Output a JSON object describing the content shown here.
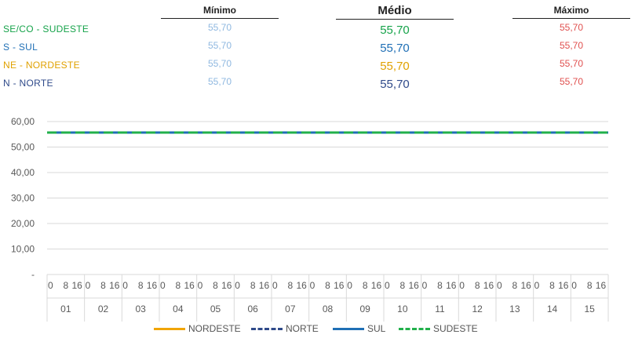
{
  "headers": {
    "min": "Mínimo",
    "med": "Médio",
    "max": "Máximo"
  },
  "rows": [
    {
      "region": "SE/CO - SUDESTE",
      "color": "#16a34a",
      "min": "55,70",
      "med": "55,70",
      "max": "55,70"
    },
    {
      "region": "S - SUL",
      "color": "#1f6fb5",
      "min": "55,70",
      "med": "55,70",
      "max": "55,70"
    },
    {
      "region": "NE - NORDESTE",
      "color": "#e0a100",
      "min": "55,70",
      "med": "55,70",
      "max": "55,70"
    },
    {
      "region": "N - NORTE",
      "color": "#2f4a8a",
      "min": "55,70",
      "med": "55,70",
      "max": "55,70"
    }
  ],
  "value_colors": {
    "min": "#8fb8e0",
    "max": "#e0504f"
  },
  "chart_data": {
    "type": "line",
    "ylim": [
      0,
      60
    ],
    "yticks": [
      "-",
      "10,00",
      "20,00",
      "30,00",
      "40,00",
      "50,00",
      "60,00"
    ],
    "ytick_values": [
      0,
      10,
      20,
      30,
      40,
      50,
      60
    ],
    "hour_ticks": [
      "0",
      "8",
      "16"
    ],
    "days": [
      "01",
      "02",
      "03",
      "04",
      "05",
      "06",
      "07",
      "08",
      "09",
      "10",
      "11",
      "12",
      "13",
      "14",
      "15"
    ],
    "grid": true,
    "legend_position": "bottom",
    "series": [
      {
        "name": "NORDESTE",
        "color": "#f0a500",
        "dash": "solid",
        "value": 55.7
      },
      {
        "name": "NORTE",
        "color": "#2f4a8a",
        "dash": "dashed",
        "value": 55.7
      },
      {
        "name": "SUL",
        "color": "#1f6fb5",
        "dash": "solid",
        "value": 55.7
      },
      {
        "name": "SUDESTE",
        "color": "#22b04b",
        "dash": "dashed",
        "value": 55.7
      }
    ]
  }
}
